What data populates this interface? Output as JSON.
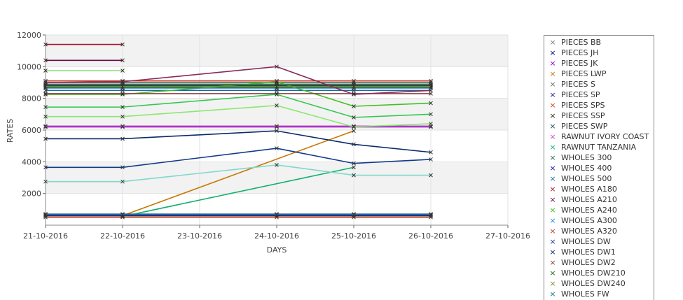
{
  "chart_data": {
    "type": "line",
    "xlabel": "DAYS",
    "ylabel": "RATES",
    "x_ticks": [
      "21-10-2016",
      "22-10-2016",
      "23-10-2016",
      "24-10-2016",
      "25-10-2016",
      "26-10-2016",
      "27-10-2016"
    ],
    "x_range": [
      "21-10-2016",
      "27-10-2016"
    ],
    "y_ticks": [
      2000,
      4000,
      6000,
      8000,
      10000,
      12000
    ],
    "ylim": [
      0,
      12000
    ],
    "grid": true,
    "legend": "right",
    "series": [
      {
        "name": "PIECES BB",
        "color": "#7a7a7a",
        "points": [
          [
            "21-10-2016",
            8900
          ],
          [
            "22-10-2016",
            8900
          ],
          [
            "24-10-2016",
            8900
          ],
          [
            "25-10-2016",
            8900
          ],
          [
            "26-10-2016",
            8900
          ]
        ]
      },
      {
        "name": "PIECES JH",
        "color": "#00007a",
        "points": [
          [
            "21-10-2016",
            650
          ],
          [
            "22-10-2016",
            650
          ],
          [
            "24-10-2016",
            650
          ],
          [
            "25-10-2016",
            650
          ],
          [
            "26-10-2016",
            650
          ]
        ]
      },
      {
        "name": "PIECES JK",
        "color": "#8a00c8",
        "points": [
          [
            "21-10-2016",
            6200
          ],
          [
            "22-10-2016",
            6200
          ],
          [
            "24-10-2016",
            6200
          ],
          [
            "25-10-2016",
            6200
          ],
          [
            "26-10-2016",
            6200
          ]
        ]
      },
      {
        "name": "PIECES LWP",
        "color": "#c87800",
        "points": [
          [
            "22-10-2016",
            600
          ],
          [
            "25-10-2016",
            5950
          ]
        ]
      },
      {
        "name": "PIECES S",
        "color": "#6a6a6a",
        "points": [
          [
            "21-10-2016",
            580
          ],
          [
            "22-10-2016",
            580
          ],
          [
            "24-10-2016",
            580
          ],
          [
            "25-10-2016",
            580
          ],
          [
            "26-10-2016",
            580
          ]
        ]
      },
      {
        "name": "PIECES SP",
        "color": "#1a1a8a",
        "points": [
          [
            "21-10-2016",
            8800
          ],
          [
            "22-10-2016",
            8800
          ],
          [
            "24-10-2016",
            8800
          ],
          [
            "25-10-2016",
            8800
          ],
          [
            "26-10-2016",
            8800
          ]
        ]
      },
      {
        "name": "PIECES SPS",
        "color": "#d83a1a",
        "points": [
          [
            "21-10-2016",
            500
          ],
          [
            "22-10-2016",
            500
          ],
          [
            "24-10-2016",
            500
          ],
          [
            "25-10-2016",
            500
          ],
          [
            "26-10-2016",
            500
          ]
        ]
      },
      {
        "name": "PIECES SSP",
        "color": "#1a2a1a",
        "points": [
          [
            "21-10-2016",
            8700
          ],
          [
            "22-10-2016",
            8700
          ],
          [
            "24-10-2016",
            8700
          ],
          [
            "25-10-2016",
            8700
          ],
          [
            "26-10-2016",
            8700
          ]
        ]
      },
      {
        "name": "PIECES SWP",
        "color": "#1a4a5a",
        "points": [
          [
            "21-10-2016",
            700
          ],
          [
            "22-10-2016",
            700
          ],
          [
            "24-10-2016",
            700
          ],
          [
            "25-10-2016",
            700
          ],
          [
            "26-10-2016",
            700
          ]
        ]
      },
      {
        "name": "RAWNUT IVORY COAST",
        "color": "#c84ac8",
        "points": [
          [
            "21-10-2016",
            6250
          ],
          [
            "22-10-2016",
            6250
          ],
          [
            "24-10-2016",
            6250
          ],
          [
            "25-10-2016",
            6250
          ],
          [
            "26-10-2016",
            6250
          ]
        ]
      },
      {
        "name": "RAWNUT TANZANIA",
        "color": "#10b070",
        "points": [
          [
            "22-10-2016",
            550
          ],
          [
            "25-10-2016",
            3650
          ]
        ]
      },
      {
        "name": "WHOLES 300",
        "color": "#2a6a4a",
        "points": [
          [
            "21-10-2016",
            9000
          ],
          [
            "22-10-2016",
            9000
          ],
          [
            "24-10-2016",
            9000
          ],
          [
            "25-10-2016",
            9000
          ],
          [
            "26-10-2016",
            9000
          ]
        ]
      },
      {
        "name": "WHOLES 400",
        "color": "#1010b0",
        "points": [
          [
            "21-10-2016",
            620
          ],
          [
            "22-10-2016",
            620
          ],
          [
            "24-10-2016",
            620
          ],
          [
            "25-10-2016",
            620
          ],
          [
            "26-10-2016",
            620
          ]
        ]
      },
      {
        "name": "WHOLES 500",
        "color": "#1a6a9a",
        "points": [
          [
            "21-10-2016",
            8500
          ],
          [
            "22-10-2016",
            8500
          ],
          [
            "24-10-2016",
            8500
          ],
          [
            "25-10-2016",
            8500
          ],
          [
            "26-10-2016",
            8500
          ]
        ]
      },
      {
        "name": "WHOLES A180",
        "color": "#a01a3a",
        "points": [
          [
            "21-10-2016",
            11400
          ],
          [
            "22-10-2016",
            11400
          ]
        ]
      },
      {
        "name": "WHOLES A210",
        "color": "#6a0a4a",
        "points": [
          [
            "21-10-2016",
            10400
          ],
          [
            "22-10-2016",
            10400
          ]
        ]
      },
      {
        "name": "WHOLES A240",
        "color": "#40c020",
        "points": [
          [
            "21-10-2016",
            8250
          ],
          [
            "22-10-2016",
            8250
          ],
          [
            "24-10-2016",
            9050
          ],
          [
            "25-10-2016",
            7500
          ],
          [
            "26-10-2016",
            7700
          ]
        ]
      },
      {
        "name": "WHOLES A300",
        "color": "#2a8ad8",
        "points": [
          [
            "21-10-2016",
            8650
          ],
          [
            "22-10-2016",
            8650
          ],
          [
            "24-10-2016",
            8650
          ],
          [
            "25-10-2016",
            8650
          ],
          [
            "26-10-2016",
            8650
          ]
        ]
      },
      {
        "name": "WHOLES A320",
        "color": "#c83a2a",
        "points": [
          [
            "21-10-2016",
            9100
          ],
          [
            "22-10-2016",
            9100
          ],
          [
            "24-10-2016",
            9100
          ],
          [
            "25-10-2016",
            9100
          ],
          [
            "26-10-2016",
            9100
          ]
        ]
      },
      {
        "name": "WHOLES DW",
        "color": "#103a8a",
        "points": [
          [
            "21-10-2016",
            3650
          ],
          [
            "22-10-2016",
            3650
          ],
          [
            "24-10-2016",
            4850
          ],
          [
            "25-10-2016",
            3900
          ],
          [
            "26-10-2016",
            4150
          ]
        ]
      },
      {
        "name": "WHOLES DW1",
        "color": "#0a2a6a",
        "points": [
          [
            "21-10-2016",
            5450
          ],
          [
            "22-10-2016",
            5450
          ],
          [
            "24-10-2016",
            5950
          ],
          [
            "25-10-2016",
            5100
          ],
          [
            "26-10-2016",
            4600
          ]
        ]
      },
      {
        "name": "WHOLES DW2",
        "color": "#8a3a3a",
        "points": [
          [
            "21-10-2016",
            8300
          ],
          [
            "22-10-2016",
            8300
          ],
          [
            "24-10-2016",
            8300
          ],
          [
            "25-10-2016",
            8300
          ],
          [
            "26-10-2016",
            8300
          ]
        ]
      },
      {
        "name": "WHOLES DW210",
        "color": "#2a6a1a",
        "points": [
          [
            "21-10-2016",
            8850
          ],
          [
            "22-10-2016",
            8850
          ],
          [
            "24-10-2016",
            8850
          ],
          [
            "25-10-2016",
            8850
          ],
          [
            "26-10-2016",
            8850
          ]
        ]
      },
      {
        "name": "WHOLES DW240",
        "color": "#6a9a1a",
        "points": [
          [
            "21-10-2016",
            8750
          ],
          [
            "22-10-2016",
            8750
          ],
          [
            "24-10-2016",
            8750
          ],
          [
            "25-10-2016",
            8750
          ],
          [
            "26-10-2016",
            8750
          ]
        ]
      },
      {
        "name": "WHOLES FW",
        "color": "#1a7a8a",
        "points": [
          [
            "21-10-2016",
            680
          ],
          [
            "22-10-2016",
            680
          ],
          [
            "24-10-2016",
            680
          ],
          [
            "25-10-2016",
            680
          ],
          [
            "26-10-2016",
            680
          ]
        ]
      },
      {
        "name": "",
        "color": "#8ae070",
        "points": [
          [
            "21-10-2016",
            9750
          ],
          [
            "22-10-2016",
            9750
          ]
        ]
      },
      {
        "name": "",
        "color": "#8a2a5a",
        "points": [
          [
            "21-10-2016",
            9000
          ],
          [
            "22-10-2016",
            9050
          ],
          [
            "24-10-2016",
            10000
          ],
          [
            "25-10-2016",
            8250
          ],
          [
            "26-10-2016",
            8500
          ]
        ]
      },
      {
        "name": "",
        "color": "#30c850",
        "points": [
          [
            "21-10-2016",
            7450
          ],
          [
            "22-10-2016",
            7450
          ],
          [
            "24-10-2016",
            8250
          ],
          [
            "25-10-2016",
            6800
          ],
          [
            "26-10-2016",
            7000
          ]
        ]
      },
      {
        "name": "",
        "color": "#8ae870",
        "points": [
          [
            "21-10-2016",
            6850
          ],
          [
            "22-10-2016",
            6850
          ],
          [
            "24-10-2016",
            7550
          ],
          [
            "25-10-2016",
            6200
          ],
          [
            "26-10-2016",
            6400
          ]
        ]
      },
      {
        "name": "",
        "color": "#80d8c8",
        "points": [
          [
            "21-10-2016",
            2750
          ],
          [
            "22-10-2016",
            2750
          ],
          [
            "24-10-2016",
            3800
          ],
          [
            "25-10-2016",
            3150
          ],
          [
            "26-10-2016",
            3150
          ]
        ]
      }
    ]
  }
}
